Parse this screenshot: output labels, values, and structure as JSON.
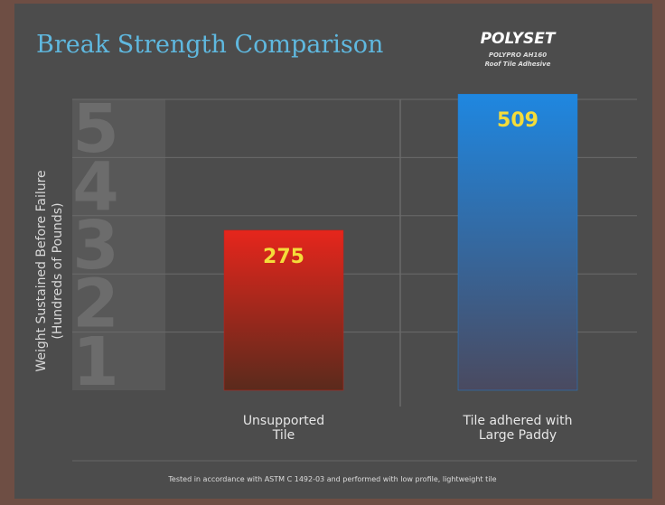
{
  "chart_data": {
    "type": "bar",
    "title": "Break Strength Comparison",
    "brand": {
      "name": "POLYSET",
      "product": "POLYPRO AH160",
      "tagline": "Roof Tile Adhesive"
    },
    "y_label": [
      "Weight Sustained Before Failure",
      "(Hundreds of Pounds)"
    ],
    "categories": [
      "Unsupported Tile",
      "Tile adhered with Large Paddy"
    ],
    "values": [
      2.75,
      5.09
    ],
    "value_labels": [
      "275",
      "509"
    ],
    "colors": [
      "#c0201a",
      "#1f7fd6"
    ],
    "ylim": [
      0,
      5
    ],
    "yticks": [
      1,
      2,
      3,
      4,
      5
    ],
    "grid": true,
    "footnote": "Tested in accordance with ASTM C 1492-03 and performed with low profile, lightweight tile"
  }
}
